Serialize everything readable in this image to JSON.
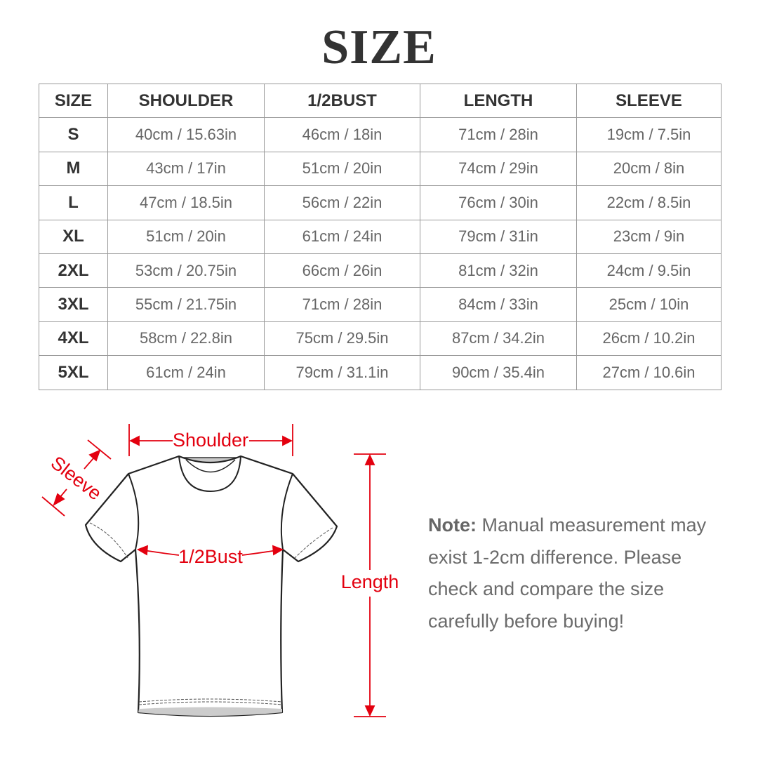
{
  "title": "SIZE",
  "table": {
    "headers": [
      "SIZE",
      "SHOULDER",
      "1/2BUST",
      "LENGTH",
      "SLEEVE"
    ],
    "rows": [
      [
        "S",
        "40cm / 15.63in",
        "46cm / 18in",
        "71cm / 28in",
        "19cm / 7.5in"
      ],
      [
        "M",
        "43cm / 17in",
        "51cm / 20in",
        "74cm / 29in",
        "20cm / 8in"
      ],
      [
        "L",
        "47cm / 18.5in",
        "56cm / 22in",
        "76cm / 30in",
        "22cm / 8.5in"
      ],
      [
        "XL",
        "51cm / 20in",
        "61cm / 24in",
        "79cm / 31in",
        "23cm / 9in"
      ],
      [
        "2XL",
        "53cm / 20.75in",
        "66cm / 26in",
        "81cm / 32in",
        "24cm / 9.5in"
      ],
      [
        "3XL",
        "55cm / 21.75in",
        "71cm / 28in",
        "84cm / 33in",
        "25cm / 10in"
      ],
      [
        "4XL",
        "58cm / 22.8in",
        "75cm / 29.5in",
        "87cm / 34.2in",
        "26cm / 10.2in"
      ],
      [
        "5XL",
        "61cm / 24in",
        "79cm / 31.1in",
        "90cm / 35.4in",
        "27cm / 10.6in"
      ]
    ]
  },
  "diagram": {
    "labels": {
      "shoulder": "Shoulder",
      "sleeve": "Sleeve",
      "bust": "1/2Bust",
      "length": "Length"
    },
    "accent_color": "#e3000f"
  },
  "note": {
    "label": "Note:",
    "text": " Manual measurement may exist 1-2cm difference. Please check and compare the size carefully before buying!"
  }
}
